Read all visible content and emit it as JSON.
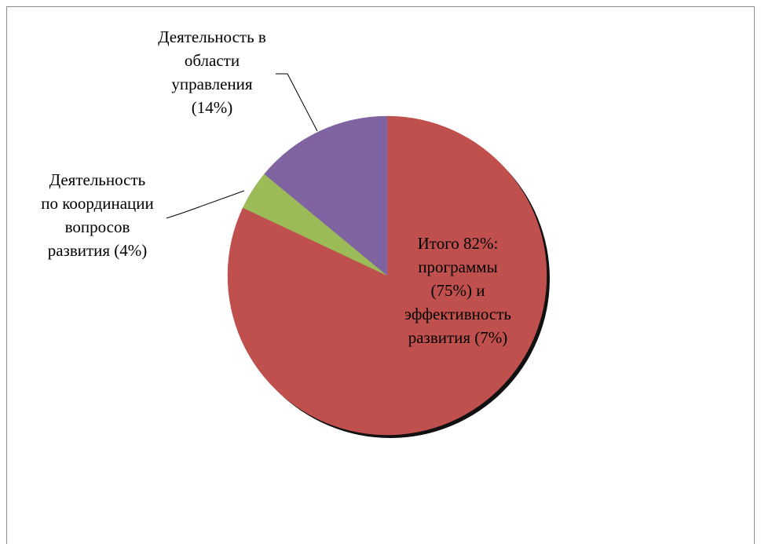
{
  "chart_data": {
    "type": "pie",
    "title": "",
    "start_angle_deg": 0,
    "direction": "clockwise",
    "slices": [
      {
        "label_lines": [
          "Итого 82%:",
          "программы",
          "(75%) и",
          "эффективность",
          "развития (7%)"
        ],
        "value": 82,
        "color": "#c0504d"
      },
      {
        "label_lines": [
          "Деятельность",
          "по координации",
          "вопросов",
          "развития (4%)"
        ],
        "value": 4,
        "color": "#9bbb59"
      },
      {
        "label_lines": [
          "Деятельность в",
          "области",
          "управления",
          "(14%)"
        ],
        "value": 14,
        "color": "#8064a2"
      }
    ],
    "legend": "none",
    "data_labels": "outside-with-leader-lines-except-largest-inside"
  }
}
